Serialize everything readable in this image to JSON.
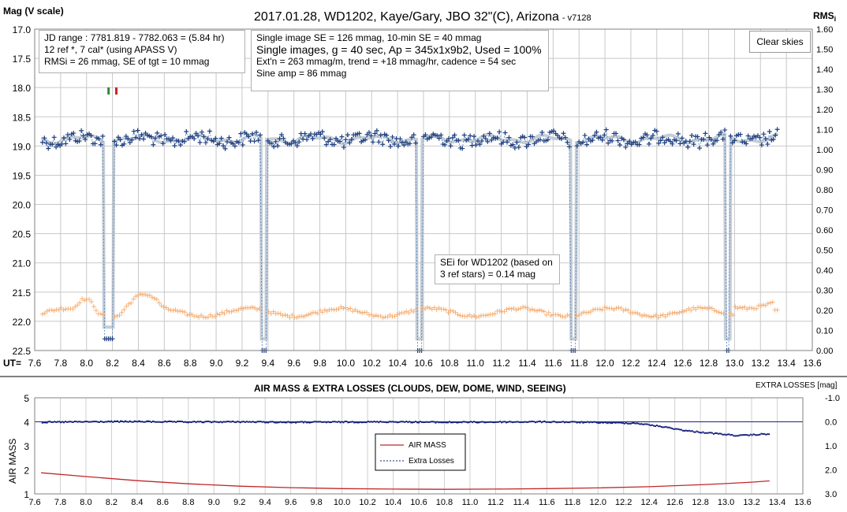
{
  "chart_data": [
    {
      "type": "scatter",
      "title": "2017.01.28,  WD1202, Kaye/Gary, JBO 32\"(C), Arizona",
      "version": "- v7128",
      "ylabel_left": "Mag (V scale)",
      "ylabel_right": "RMS",
      "ylabel_right_sub": "i",
      "xlabel": "UT=",
      "xlim": [
        7.6,
        13.6
      ],
      "ylim_left": [
        17.0,
        22.5
      ],
      "ylim_right": [
        0.0,
        1.6
      ],
      "x_ticks": [
        "7.6",
        "7.8",
        "8.0",
        "8.2",
        "8.4",
        "8.6",
        "8.8",
        "9.0",
        "9.2",
        "9.4",
        "9.6",
        "9.8",
        "10.0",
        "10.2",
        "10.4",
        "10.6",
        "10.8",
        "11.0",
        "11.2",
        "11.4",
        "11.6",
        "11.8",
        "12.0",
        "12.2",
        "12.4",
        "12.6",
        "12.8",
        "13.0",
        "13.2",
        "13.4",
        "13.6"
      ],
      "y_ticks_left": [
        "17.0",
        "17.5",
        "18.0",
        "18.5",
        "19.0",
        "19.5",
        "20.0",
        "20.5",
        "21.0",
        "21.5",
        "22.0",
        "22.5"
      ],
      "y_ticks_right": [
        "1.60",
        "1.50",
        "1.40",
        "1.30",
        "1.20",
        "1.10",
        "1.00",
        "0.90",
        "0.80",
        "0.70",
        "0.60",
        "0.50",
        "0.40",
        "0.30",
        "0.20",
        "0.10",
        "0.00"
      ],
      "series": [
        {
          "marker": "+",
          "color": "#1f3f7f",
          "baseline_mag": 18.88,
          "scatter_mag": 0.1
        },
        {
          "marker": "line",
          "color": "#b7c0cc",
          "baseline_mag": 18.88
        },
        {
          "marker": "+",
          "color": "#f5b27a",
          "axis": "right",
          "baseline_rms": 0.19
        }
      ],
      "transits": [
        {
          "center": 8.17,
          "width": 0.075,
          "depth_mag": 22.3
        },
        {
          "center": 9.37,
          "width": 0.04,
          "depth_mag": 22.5
        },
        {
          "center": 10.57,
          "width": 0.04,
          "depth_mag": 22.5
        },
        {
          "center": 11.76,
          "width": 0.04,
          "depth_mag": 22.5
        },
        {
          "center": 12.95,
          "width": 0.04,
          "depth_mag": 22.5
        }
      ],
      "markers": [
        {
          "x": 8.17,
          "color": "#2e8b2e"
        },
        {
          "x": 8.23,
          "color": "#cc2222"
        }
      ]
    },
    {
      "type": "line",
      "title": "AIR MASS & EXTRA LOSSES (CLOUDS, DEW, DOME, WIND, SEEING)",
      "ylabel_left": "AIR MASS",
      "ylabel_right": "EXTRA LOSSES [mag]",
      "xlim": [
        7.6,
        13.6
      ],
      "ylim_left": [
        1,
        5
      ],
      "ylim_right": [
        3.0,
        -1.0
      ],
      "x_ticks": [
        "7.6",
        "7.8",
        "8.0",
        "8.2",
        "8.4",
        "8.6",
        "8.8",
        "9.0",
        "9.2",
        "9.4",
        "9.6",
        "9.8",
        "10.0",
        "10.2",
        "10.4",
        "10.6",
        "10.8",
        "11.0",
        "11.2",
        "11.4",
        "11.6",
        "11.8",
        "12.0",
        "12.2",
        "12.4",
        "12.6",
        "12.8",
        "13.0",
        "13.2",
        "13.4",
        "13.6"
      ],
      "y_ticks_left": [
        "5",
        "4",
        "3",
        "2",
        "1"
      ],
      "y_ticks_right": [
        "-1.0",
        "0.0",
        "1.0",
        "2.0",
        "3.0"
      ],
      "series": [
        {
          "name": "AIR MASS",
          "color": "#c0282a",
          "x": [
            7.65,
            8.0,
            8.4,
            8.8,
            9.2,
            9.6,
            10.0,
            10.4,
            10.8,
            11.2,
            11.6,
            12.0,
            12.4,
            12.8,
            13.0,
            13.2,
            13.34
          ],
          "values": [
            1.88,
            1.72,
            1.55,
            1.42,
            1.32,
            1.26,
            1.22,
            1.2,
            1.19,
            1.2,
            1.22,
            1.25,
            1.3,
            1.38,
            1.43,
            1.49,
            1.54
          ]
        },
        {
          "name": "Extra Losses",
          "color": "#1a237e",
          "axis": "right",
          "x": [
            7.65,
            8.0,
            8.4,
            8.8,
            9.2,
            9.6,
            10.0,
            10.4,
            10.8,
            11.2,
            11.6,
            12.0,
            12.3,
            12.5,
            12.7,
            12.9,
            13.1,
            13.34
          ],
          "values": [
            0.02,
            0.0,
            -0.01,
            0.01,
            0.0,
            0.02,
            0.01,
            0.0,
            0.02,
            0.01,
            0.0,
            0.03,
            0.06,
            0.2,
            0.38,
            0.48,
            0.58,
            0.5
          ]
        }
      ]
    }
  ],
  "info_box_1": {
    "line1": "JD range  : 7781.819 - 7782.063  = (5.84 hr)",
    "line2": "12 ref *, 7 cal* (using APASS  V)",
    "line3": "RMSi = 26 mmag, SE of tgt = 10 mmag"
  },
  "info_box_2": {
    "line1": "Single image SE = 126 mmag, 10-min SE = 40 mmag",
    "line2": "Single images, g = 40 sec, Ap = 345x1x9b2, Used = 100%",
    "line3": "Ext'n = 263 mmag/m, trend = +18 mmag/hr, cadence = 54 sec",
    "line4": "Sine amp = 86 mmag"
  },
  "clear_skies_label": "Clear skies",
  "sei_box": {
    "line1": "SEi for WD1202 (based on",
    "line2": "3 ref stars) = 0.14 mag"
  },
  "colors": {
    "target": "#1f3f7f",
    "rms": "#f5b27a",
    "smooth": "#b7c0cc",
    "airmass": "#c0282a",
    "losses": "#1a237e",
    "grid": "#c8c8c8"
  }
}
